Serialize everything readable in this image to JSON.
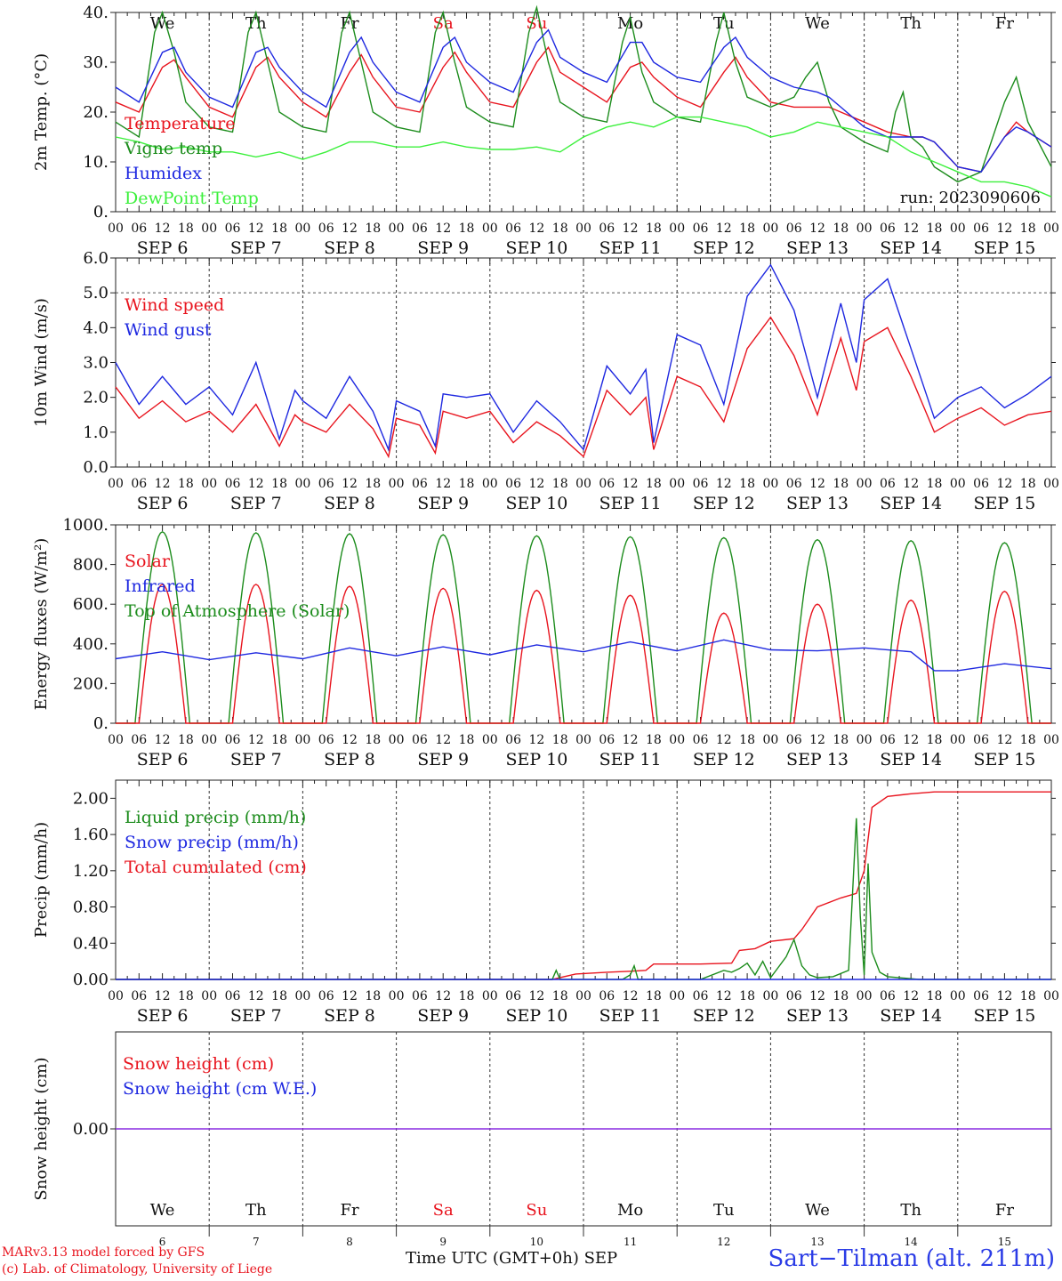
{
  "run_label": "run: 2023090606",
  "day_names": [
    "We",
    "Th",
    "Fr",
    "Sa",
    "Su",
    "Mo",
    "Tu",
    "We",
    "Th",
    "Fr"
  ],
  "day_name_colors": [
    "#111111",
    "#111111",
    "#111111",
    "#e8141e",
    "#e8141e",
    "#111111",
    "#111111",
    "#111111",
    "#111111",
    "#111111"
  ],
  "dates": [
    "SEP  6",
    "SEP  7",
    "SEP  8",
    "SEP  9",
    "SEP 10",
    "SEP 11",
    "SEP 12",
    "SEP 13",
    "SEP 14",
    "SEP 15"
  ],
  "day_numbers": [
    "6",
    "7",
    "8",
    "9",
    "10",
    "11",
    "12",
    "13",
    "14",
    "15"
  ],
  "hour_labels": [
    "00",
    "06",
    "12",
    "18"
  ],
  "hour_label_end": "00",
  "footer": {
    "model_line": "MARv3.13 model forced by GFS",
    "lab_line": "(c) Lab. of Climatology, University of Liege",
    "xlabel": "Time UTC (GMT+0h) SEP",
    "station": "Sart−Tilman (alt. 211m)"
  },
  "colors": {
    "red": "#e8141e",
    "blue": "#1e28e0",
    "green": "#1c8c1c",
    "lightgreen": "#3cf03c",
    "purple": "#8a2be2"
  },
  "chart_data": [
    {
      "type": "line",
      "id": "temp",
      "ylabel": "2m Temp. (°C)",
      "ylim": [
        0,
        40
      ],
      "yticks": [
        "0.",
        "10.",
        "20.",
        "30.",
        "40."
      ],
      "xlim_hours": [
        0,
        240
      ],
      "legend": [
        "Temperature",
        "Vigne temp",
        "Humidex",
        "DewPoint Temp"
      ],
      "series": [
        {
          "name": "Temperature",
          "color": "red",
          "x": [
            0,
            6,
            12,
            15,
            18,
            24,
            30,
            36,
            39,
            42,
            48,
            54,
            60,
            63,
            66,
            72,
            78,
            84,
            87,
            90,
            96,
            102,
            108,
            111,
            114,
            120,
            126,
            132,
            135,
            138,
            144,
            150,
            156,
            159,
            162,
            168,
            174,
            180,
            183,
            186,
            192,
            198,
            204,
            207,
            210,
            216,
            222,
            228,
            231,
            234,
            240
          ],
          "y": [
            22,
            20,
            29,
            30.5,
            27,
            21,
            19,
            29,
            31,
            27,
            22,
            19,
            28,
            31.5,
            27,
            21,
            20,
            29,
            32,
            28,
            22,
            21,
            30,
            33,
            28,
            25,
            22,
            29,
            30,
            27,
            23,
            21,
            28,
            31,
            27,
            22,
            21,
            21,
            21,
            20,
            18,
            16,
            15,
            15,
            14,
            9,
            8,
            15,
            18,
            16,
            13
          ]
        },
        {
          "name": "Vigne temp",
          "color": "green",
          "x": [
            0,
            6,
            10,
            12,
            15,
            18,
            24,
            30,
            34,
            36,
            39,
            42,
            48,
            54,
            58,
            60,
            63,
            66,
            72,
            78,
            82,
            84,
            87,
            90,
            96,
            102,
            106,
            108,
            111,
            114,
            120,
            126,
            130,
            132,
            135,
            138,
            144,
            150,
            154,
            156,
            159,
            162,
            168,
            174,
            177,
            180,
            183,
            186,
            192,
            198,
            200,
            202,
            204,
            207,
            210,
            216,
            222,
            228,
            231,
            234,
            240
          ],
          "y": [
            18,
            15,
            36,
            40,
            32,
            22,
            17,
            16,
            36,
            40,
            30,
            20,
            17,
            16,
            36,
            40,
            30,
            20,
            17,
            16,
            36,
            40,
            30,
            21,
            18,
            17,
            36,
            41,
            30,
            22,
            19,
            18,
            34,
            39,
            28,
            22,
            19,
            18,
            34,
            40,
            30,
            23,
            21,
            23,
            27,
            30,
            22,
            17,
            14,
            12,
            20,
            24,
            15,
            13,
            9,
            6,
            8,
            22,
            27,
            18,
            9
          ]
        },
        {
          "name": "Humidex",
          "color": "blue",
          "x": [
            0,
            6,
            12,
            15,
            18,
            24,
            30,
            36,
            39,
            42,
            48,
            54,
            60,
            63,
            66,
            72,
            78,
            84,
            87,
            90,
            96,
            102,
            108,
            111,
            114,
            120,
            126,
            132,
            135,
            138,
            144,
            150,
            156,
            159,
            162,
            168,
            174,
            180,
            183,
            186,
            192,
            198,
            204,
            207,
            210,
            216,
            222,
            228,
            231,
            234,
            240
          ],
          "y": [
            25,
            22,
            32,
            33,
            28,
            23,
            21,
            32,
            33,
            29,
            24,
            21,
            32,
            35,
            30,
            24,
            22,
            33,
            35,
            30,
            26,
            24,
            34,
            36.5,
            31,
            28,
            26,
            34,
            34,
            30,
            27,
            26,
            33,
            35,
            31,
            27,
            25,
            24,
            23,
            21,
            17,
            15,
            15,
            15,
            14,
            9,
            8,
            15,
            17,
            16,
            13
          ]
        },
        {
          "name": "DewPoint Temp",
          "color": "lightgreen",
          "x": [
            0,
            6,
            12,
            18,
            24,
            30,
            36,
            42,
            48,
            54,
            60,
            66,
            72,
            78,
            84,
            90,
            96,
            102,
            108,
            114,
            120,
            126,
            132,
            138,
            144,
            150,
            156,
            162,
            168,
            174,
            180,
            186,
            192,
            198,
            204,
            210,
            216,
            222,
            228,
            234,
            240
          ],
          "y": [
            15,
            14,
            12.5,
            13,
            12,
            12,
            11,
            12,
            10.5,
            12,
            14,
            14,
            13,
            13,
            14,
            13,
            12.5,
            12.5,
            13,
            12,
            15,
            17,
            18,
            17,
            19,
            19,
            18,
            17,
            15,
            16,
            18,
            17,
            16,
            15,
            12,
            10,
            8,
            6,
            6,
            5,
            3
          ]
        }
      ]
    },
    {
      "type": "line",
      "id": "wind",
      "ylabel": "10m Wind (m/s)",
      "ylim": [
        0,
        6
      ],
      "yticks": [
        "0.0",
        "1.0",
        "2.0",
        "3.0",
        "4.0",
        "5.0",
        "6.0"
      ],
      "xlim_hours": [
        0,
        240
      ],
      "legend": [
        "Wind speed",
        "Wind gust"
      ],
      "series": [
        {
          "name": "Wind speed",
          "color": "red",
          "x": [
            0,
            6,
            12,
            18,
            24,
            30,
            36,
            42,
            46,
            48,
            54,
            60,
            66,
            70,
            72,
            78,
            82,
            84,
            90,
            96,
            102,
            108,
            114,
            120,
            126,
            132,
            136,
            138,
            144,
            150,
            156,
            162,
            168,
            174,
            180,
            186,
            190,
            192,
            198,
            204,
            210,
            216,
            222,
            228,
            234,
            240
          ],
          "y": [
            2.3,
            1.4,
            1.9,
            1.3,
            1.6,
            1.0,
            1.8,
            0.6,
            1.5,
            1.3,
            1.0,
            1.8,
            1.1,
            0.3,
            1.4,
            1.2,
            0.4,
            1.6,
            1.4,
            1.6,
            0.7,
            1.3,
            0.9,
            0.3,
            2.2,
            1.5,
            2.0,
            0.5,
            2.6,
            2.3,
            1.3,
            3.4,
            4.3,
            3.2,
            1.5,
            3.7,
            2.2,
            3.6,
            4.0,
            2.6,
            1.0,
            1.4,
            1.7,
            1.2,
            1.5,
            1.6
          ]
        },
        {
          "name": "Wind gust",
          "color": "blue",
          "x": [
            0,
            6,
            12,
            18,
            24,
            30,
            36,
            42,
            46,
            48,
            54,
            60,
            66,
            70,
            72,
            78,
            82,
            84,
            90,
            96,
            102,
            108,
            114,
            120,
            126,
            132,
            136,
            138,
            144,
            150,
            156,
            162,
            168,
            174,
            180,
            186,
            190,
            192,
            198,
            204,
            210,
            216,
            222,
            228,
            234,
            240
          ],
          "y": [
            3.0,
            1.8,
            2.6,
            1.8,
            2.3,
            1.5,
            3.0,
            0.8,
            2.2,
            1.9,
            1.4,
            2.6,
            1.6,
            0.5,
            1.9,
            1.6,
            0.6,
            2.1,
            2.0,
            2.1,
            1.0,
            1.9,
            1.3,
            0.5,
            2.9,
            2.1,
            2.8,
            0.7,
            3.8,
            3.5,
            1.8,
            4.9,
            5.8,
            4.5,
            2.0,
            4.7,
            3.0,
            4.8,
            5.4,
            3.4,
            1.4,
            2.0,
            2.3,
            1.7,
            2.1,
            2.6
          ]
        }
      ]
    },
    {
      "type": "line",
      "id": "energy",
      "ylabel": "Energy fluxes (W/m²)",
      "ylim": [
        0,
        1000
      ],
      "yticks": [
        "0.",
        "200.",
        "400.",
        "600.",
        "800.",
        "1000."
      ],
      "xlim_hours": [
        0,
        240
      ],
      "legend": [
        "Solar",
        "Infrared",
        "Top of Atmosphere (Solar)"
      ],
      "solar_daily_peak": [
        700,
        700,
        690,
        680,
        670,
        645,
        555,
        600,
        620,
        665
      ],
      "toa_daily_peak": [
        965,
        960,
        955,
        950,
        945,
        940,
        935,
        925,
        920,
        910
      ],
      "series": [
        {
          "name": "Infrared",
          "color": "blue",
          "x": [
            0,
            12,
            24,
            36,
            48,
            60,
            72,
            84,
            96,
            108,
            120,
            132,
            144,
            156,
            168,
            180,
            192,
            204,
            210,
            216,
            228,
            240
          ],
          "y": [
            325,
            360,
            320,
            355,
            325,
            380,
            340,
            385,
            345,
            395,
            360,
            410,
            365,
            420,
            370,
            365,
            380,
            360,
            265,
            265,
            300,
            275
          ]
        }
      ]
    },
    {
      "type": "line",
      "id": "precip",
      "ylabel": "Precip (mm/h)",
      "ylim": [
        0,
        2.2
      ],
      "yticks": [
        "0.00",
        "0.40",
        "0.80",
        "1.20",
        "1.60",
        "2.00"
      ],
      "xlim_hours": [
        0,
        240
      ],
      "legend": [
        "Liquid precip (mm/h)",
        "Snow precip (mm/h)",
        "Total cumulated (cm)"
      ],
      "series": [
        {
          "name": "Total cumulated (cm)",
          "color": "red",
          "x": [
            0,
            112,
            118,
            126,
            132,
            136,
            138,
            150,
            158,
            160,
            164,
            168,
            174,
            176,
            180,
            186,
            190,
            192,
            194,
            198,
            204,
            210,
            240
          ],
          "y": [
            0,
            0,
            0.06,
            0.08,
            0.09,
            0.1,
            0.17,
            0.17,
            0.18,
            0.32,
            0.34,
            0.42,
            0.45,
            0.55,
            0.8,
            0.9,
            0.95,
            1.2,
            1.9,
            2.02,
            2.05,
            2.07,
            2.07
          ]
        },
        {
          "name": "Liquid precip (mm/h)",
          "color": "green",
          "x": [
            0,
            112,
            113,
            114,
            130,
            132,
            133,
            134,
            150,
            156,
            158,
            160,
            162,
            164,
            166,
            168,
            172,
            174,
            176,
            178,
            180,
            184,
            188,
            190,
            191,
            192,
            193,
            194,
            196,
            198,
            206,
            240
          ],
          "y": [
            0,
            0,
            0.1,
            0,
            0,
            0.05,
            0.15,
            0,
            0,
            0.1,
            0.08,
            0.12,
            0.18,
            0.05,
            0.2,
            0.02,
            0.25,
            0.44,
            0.15,
            0.05,
            0.02,
            0.03,
            0.1,
            1.78,
            0.7,
            0.05,
            1.28,
            0.3,
            0.08,
            0.03,
            0,
            0
          ]
        },
        {
          "name": "Snow precip (mm/h)",
          "color": "blue",
          "x": [
            0,
            240
          ],
          "y": [
            0,
            0
          ]
        }
      ]
    },
    {
      "type": "line",
      "id": "snow",
      "ylabel": "Snow height (cm)",
      "ylim": [
        -1,
        1
      ],
      "yticks": [
        "0.00"
      ],
      "xlim_hours": [
        0,
        240
      ],
      "legend": [
        "Snow height (cm)",
        "Snow height (cm W.E.)"
      ],
      "series": [
        {
          "name": "Snow height (cm)",
          "color": "purple",
          "x": [
            0,
            240
          ],
          "y": [
            0,
            0
          ]
        }
      ]
    }
  ]
}
